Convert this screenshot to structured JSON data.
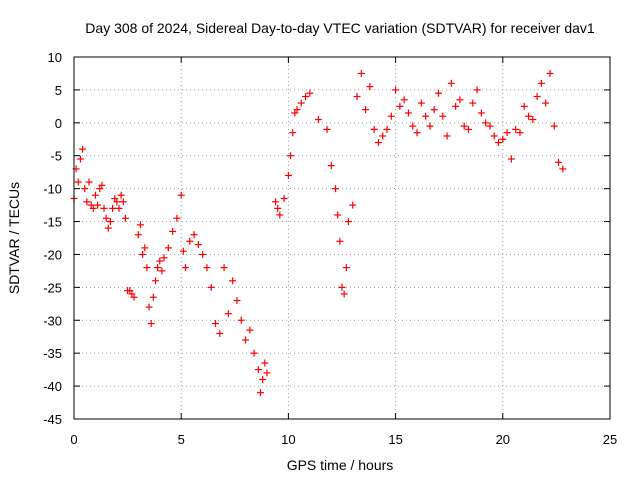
{
  "chart_data": {
    "type": "scatter",
    "title": "Day 308 of 2024, Sidereal Day-to-day VTEC variation (SDTVAR) for receiver dav1",
    "xlabel": "GPS time / hours",
    "ylabel": "SDTVAR / TECUs",
    "xlim": [
      0,
      25
    ],
    "ylim": [
      -45,
      10
    ],
    "x_ticks": [
      0,
      5,
      10,
      15,
      20,
      25
    ],
    "y_ticks": [
      -45,
      -40,
      -35,
      -30,
      -25,
      -20,
      -15,
      -10,
      -5,
      0,
      5,
      10
    ],
    "grid": true,
    "marker": "+",
    "color": "#ff0000",
    "series": [
      {
        "name": "dav1",
        "x": [
          0.0,
          0.1,
          0.2,
          0.3,
          0.4,
          0.5,
          0.6,
          0.7,
          0.8,
          0.9,
          1.0,
          1.1,
          1.2,
          1.3,
          1.4,
          1.5,
          1.6,
          1.7,
          1.8,
          1.9,
          2.0,
          2.1,
          2.2,
          2.3,
          2.4,
          2.5,
          2.6,
          2.7,
          2.8,
          3.0,
          3.1,
          3.2,
          3.3,
          3.4,
          3.5,
          3.6,
          3.7,
          3.8,
          3.9,
          4.0,
          4.1,
          4.2,
          4.4,
          4.6,
          4.8,
          5.0,
          5.1,
          5.2,
          5.4,
          5.6,
          5.8,
          6.0,
          6.2,
          6.4,
          6.6,
          6.8,
          7.0,
          7.2,
          7.4,
          7.6,
          7.8,
          8.0,
          8.2,
          8.4,
          8.6,
          8.7,
          8.8,
          8.9,
          9.0,
          9.4,
          9.5,
          9.6,
          9.8,
          10.0,
          10.1,
          10.2,
          10.3,
          10.4,
          10.6,
          10.8,
          11.0,
          11.4,
          11.8,
          12.0,
          12.2,
          12.3,
          12.4,
          12.5,
          12.6,
          12.7,
          12.8,
          13.0,
          13.2,
          13.4,
          13.6,
          13.8,
          14.0,
          14.2,
          14.4,
          14.6,
          14.8,
          15.0,
          15.2,
          15.4,
          15.6,
          15.8,
          16.0,
          16.2,
          16.4,
          16.6,
          16.8,
          17.0,
          17.2,
          17.4,
          17.6,
          17.8,
          18.0,
          18.2,
          18.4,
          18.6,
          18.8,
          19.0,
          19.2,
          19.4,
          19.6,
          19.8,
          20.0,
          20.2,
          20.4,
          20.6,
          20.8,
          21.0,
          21.2,
          21.4,
          21.6,
          21.8,
          22.0,
          22.2,
          22.4,
          22.6,
          22.8
        ],
        "y": [
          -11.5,
          -7.0,
          -9.0,
          -5.5,
          -4.0,
          -10.0,
          -12.0,
          -9.0,
          -12.5,
          -13.0,
          -11.0,
          -12.5,
          -10.0,
          -9.5,
          -13.0,
          -14.5,
          -16.0,
          -15.0,
          -13.0,
          -11.5,
          -12.0,
          -13.0,
          -11.0,
          -12.0,
          -14.5,
          -25.5,
          -25.5,
          -26.0,
          -26.5,
          -17.0,
          -15.5,
          -20.0,
          -19.0,
          -22.0,
          -28.0,
          -30.5,
          -26.5,
          -24.0,
          -22.0,
          -21.0,
          -22.5,
          -20.5,
          -19.0,
          -16.5,
          -14.5,
          -11.0,
          -19.5,
          -22.0,
          -18.0,
          -17.0,
          -18.5,
          -20.0,
          -22.0,
          -25.0,
          -30.5,
          -32.0,
          -22.0,
          -29.0,
          -24.0,
          -27.0,
          -30.0,
          -33.0,
          -31.5,
          -35.0,
          -37.5,
          -41.0,
          -39.0,
          -36.5,
          -38.0,
          -12.0,
          -13.0,
          -14.0,
          -11.5,
          -8.0,
          -5.0,
          -1.5,
          1.5,
          2.0,
          3.0,
          4.0,
          4.5,
          0.5,
          -1.0,
          -6.5,
          -10.0,
          -14.0,
          -18.0,
          -25.0,
          -26.0,
          -22.0,
          -15.0,
          -12.5,
          4.0,
          7.5,
          2.0,
          5.5,
          -1.0,
          -3.0,
          -2.0,
          -1.0,
          1.0,
          5.0,
          2.5,
          3.5,
          1.5,
          -0.5,
          -1.5,
          3.0,
          1.0,
          -0.5,
          2.0,
          4.5,
          1.0,
          -2.0,
          6.0,
          2.5,
          3.5,
          -0.5,
          -1.0,
          3.0,
          5.0,
          1.5,
          0.0,
          -0.5,
          -2.0,
          -3.0,
          -2.5,
          -1.5,
          -5.5,
          -1.0,
          -1.5,
          2.5,
          1.0,
          0.5,
          4.0,
          6.0,
          3.0,
          7.5,
          -0.5,
          -6.0,
          -7.0
        ]
      }
    ]
  }
}
